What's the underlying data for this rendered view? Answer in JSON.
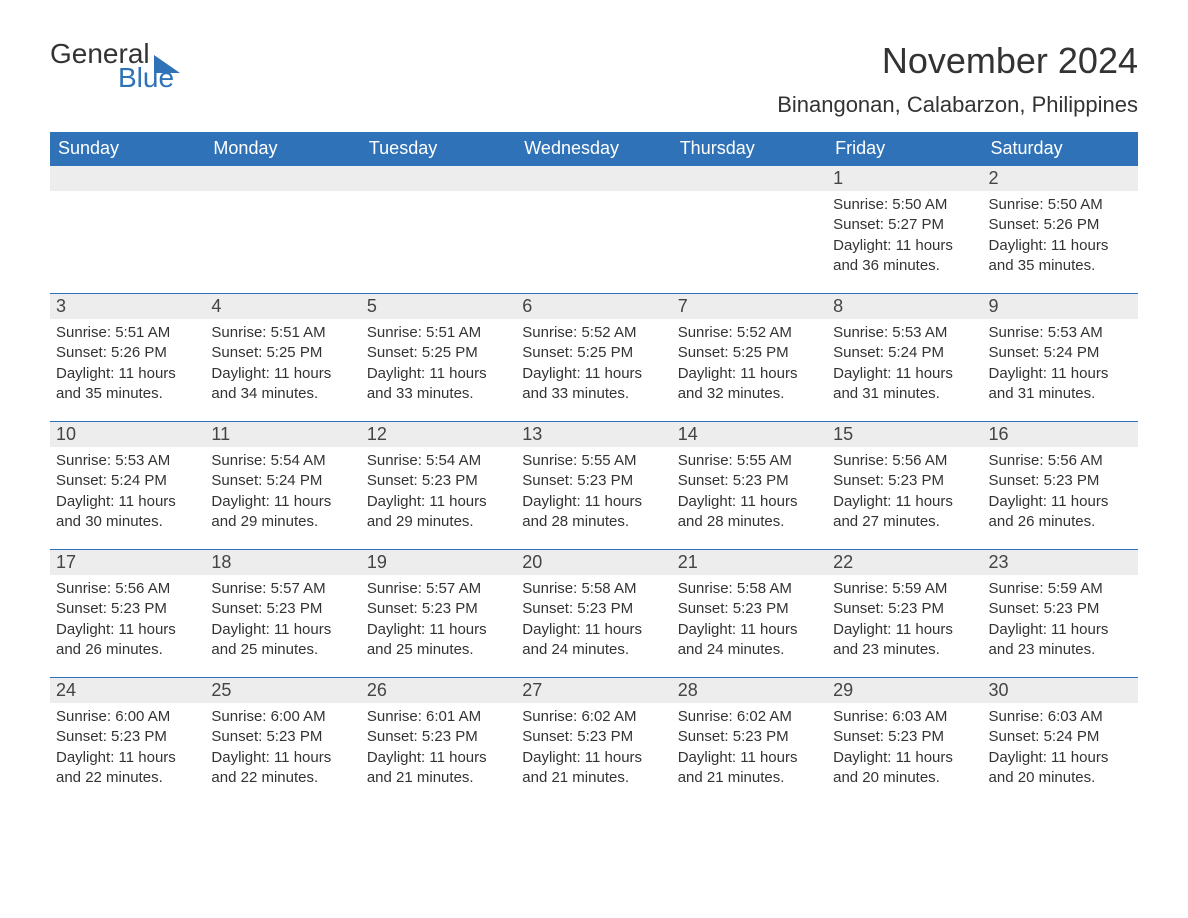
{
  "logo": {
    "word1": "General",
    "word2": "Blue",
    "accent_color": "#2f72b8"
  },
  "month_title": "November 2024",
  "location": "Binangonan, Calabarzon, Philippines",
  "colors": {
    "header_bg": "#2f72b8",
    "header_text": "#ffffff",
    "daynum_bg": "#ededed",
    "text": "#333333",
    "page_bg": "#ffffff"
  },
  "day_names": [
    "Sunday",
    "Monday",
    "Tuesday",
    "Wednesday",
    "Thursday",
    "Friday",
    "Saturday"
  ],
  "labels": {
    "sunrise": "Sunrise:",
    "sunset": "Sunset:",
    "daylight": "Daylight:"
  },
  "weeks": [
    [
      null,
      null,
      null,
      null,
      null,
      {
        "n": "1",
        "sunrise": "5:50 AM",
        "sunset": "5:27 PM",
        "daylight": "11 hours and 36 minutes."
      },
      {
        "n": "2",
        "sunrise": "5:50 AM",
        "sunset": "5:26 PM",
        "daylight": "11 hours and 35 minutes."
      }
    ],
    [
      {
        "n": "3",
        "sunrise": "5:51 AM",
        "sunset": "5:26 PM",
        "daylight": "11 hours and 35 minutes."
      },
      {
        "n": "4",
        "sunrise": "5:51 AM",
        "sunset": "5:25 PM",
        "daylight": "11 hours and 34 minutes."
      },
      {
        "n": "5",
        "sunrise": "5:51 AM",
        "sunset": "5:25 PM",
        "daylight": "11 hours and 33 minutes."
      },
      {
        "n": "6",
        "sunrise": "5:52 AM",
        "sunset": "5:25 PM",
        "daylight": "11 hours and 33 minutes."
      },
      {
        "n": "7",
        "sunrise": "5:52 AM",
        "sunset": "5:25 PM",
        "daylight": "11 hours and 32 minutes."
      },
      {
        "n": "8",
        "sunrise": "5:53 AM",
        "sunset": "5:24 PM",
        "daylight": "11 hours and 31 minutes."
      },
      {
        "n": "9",
        "sunrise": "5:53 AM",
        "sunset": "5:24 PM",
        "daylight": "11 hours and 31 minutes."
      }
    ],
    [
      {
        "n": "10",
        "sunrise": "5:53 AM",
        "sunset": "5:24 PM",
        "daylight": "11 hours and 30 minutes."
      },
      {
        "n": "11",
        "sunrise": "5:54 AM",
        "sunset": "5:24 PM",
        "daylight": "11 hours and 29 minutes."
      },
      {
        "n": "12",
        "sunrise": "5:54 AM",
        "sunset": "5:23 PM",
        "daylight": "11 hours and 29 minutes."
      },
      {
        "n": "13",
        "sunrise": "5:55 AM",
        "sunset": "5:23 PM",
        "daylight": "11 hours and 28 minutes."
      },
      {
        "n": "14",
        "sunrise": "5:55 AM",
        "sunset": "5:23 PM",
        "daylight": "11 hours and 28 minutes."
      },
      {
        "n": "15",
        "sunrise": "5:56 AM",
        "sunset": "5:23 PM",
        "daylight": "11 hours and 27 minutes."
      },
      {
        "n": "16",
        "sunrise": "5:56 AM",
        "sunset": "5:23 PM",
        "daylight": "11 hours and 26 minutes."
      }
    ],
    [
      {
        "n": "17",
        "sunrise": "5:56 AM",
        "sunset": "5:23 PM",
        "daylight": "11 hours and 26 minutes."
      },
      {
        "n": "18",
        "sunrise": "5:57 AM",
        "sunset": "5:23 PM",
        "daylight": "11 hours and 25 minutes."
      },
      {
        "n": "19",
        "sunrise": "5:57 AM",
        "sunset": "5:23 PM",
        "daylight": "11 hours and 25 minutes."
      },
      {
        "n": "20",
        "sunrise": "5:58 AM",
        "sunset": "5:23 PM",
        "daylight": "11 hours and 24 minutes."
      },
      {
        "n": "21",
        "sunrise": "5:58 AM",
        "sunset": "5:23 PM",
        "daylight": "11 hours and 24 minutes."
      },
      {
        "n": "22",
        "sunrise": "5:59 AM",
        "sunset": "5:23 PM",
        "daylight": "11 hours and 23 minutes."
      },
      {
        "n": "23",
        "sunrise": "5:59 AM",
        "sunset": "5:23 PM",
        "daylight": "11 hours and 23 minutes."
      }
    ],
    [
      {
        "n": "24",
        "sunrise": "6:00 AM",
        "sunset": "5:23 PM",
        "daylight": "11 hours and 22 minutes."
      },
      {
        "n": "25",
        "sunrise": "6:00 AM",
        "sunset": "5:23 PM",
        "daylight": "11 hours and 22 minutes."
      },
      {
        "n": "26",
        "sunrise": "6:01 AM",
        "sunset": "5:23 PM",
        "daylight": "11 hours and 21 minutes."
      },
      {
        "n": "27",
        "sunrise": "6:02 AM",
        "sunset": "5:23 PM",
        "daylight": "11 hours and 21 minutes."
      },
      {
        "n": "28",
        "sunrise": "6:02 AM",
        "sunset": "5:23 PM",
        "daylight": "11 hours and 21 minutes."
      },
      {
        "n": "29",
        "sunrise": "6:03 AM",
        "sunset": "5:23 PM",
        "daylight": "11 hours and 20 minutes."
      },
      {
        "n": "30",
        "sunrise": "6:03 AM",
        "sunset": "5:24 PM",
        "daylight": "11 hours and 20 minutes."
      }
    ]
  ]
}
